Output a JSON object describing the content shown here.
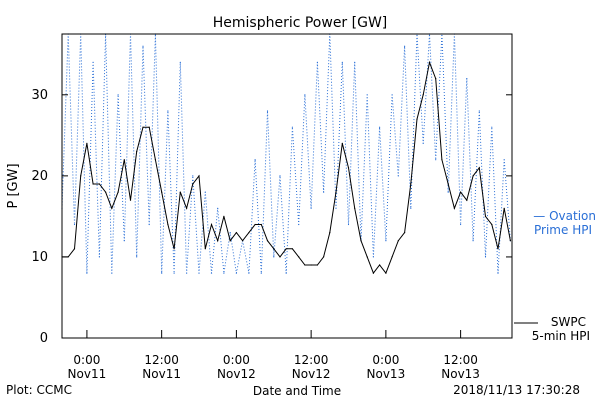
{
  "chart_data": {
    "type": "line",
    "title": "Hemispheric Power [GW]",
    "xlabel": "Date and Time",
    "ylabel": "P [GW]",
    "ylim": [
      0,
      37.5
    ],
    "xlim": [
      "2018-11-10T20:00",
      "2018-11-13T20:15"
    ],
    "y_ticks": [
      0,
      10,
      20,
      30
    ],
    "x_ticks": [
      {
        "t": "2018-11-11T00:00",
        "time": "0:00",
        "date": "Nov11"
      },
      {
        "t": "2018-11-11T12:00",
        "time": "12:00",
        "date": "Nov11"
      },
      {
        "t": "2018-11-12T00:00",
        "time": "0:00",
        "date": "Nov12"
      },
      {
        "t": "2018-11-12T12:00",
        "time": "12:00",
        "date": "Nov12"
      },
      {
        "t": "2018-11-13T00:00",
        "time": "0:00",
        "date": "Nov13"
      },
      {
        "t": "2018-11-13T12:00",
        "time": "12:00",
        "date": "Nov13"
      }
    ],
    "grid": false,
    "legend": "right",
    "series": [
      {
        "name": "SWPC 5-min HPI",
        "legend_lines": [
          "SWPC",
          "5-min HPI"
        ],
        "color": "#000000",
        "style": "solid",
        "points": [
          [
            "2018-11-10T20:00",
            10
          ],
          [
            "2018-11-10T21:00",
            10
          ],
          [
            "2018-11-10T22:00",
            11
          ],
          [
            "2018-11-10T23:00",
            20
          ],
          [
            "2018-11-11T00:00",
            24
          ],
          [
            "2018-11-11T01:00",
            19
          ],
          [
            "2018-11-11T02:00",
            19
          ],
          [
            "2018-11-11T03:00",
            18
          ],
          [
            "2018-11-11T04:00",
            16
          ],
          [
            "2018-11-11T05:00",
            18
          ],
          [
            "2018-11-11T06:00",
            22
          ],
          [
            "2018-11-11T07:00",
            17
          ],
          [
            "2018-11-11T08:00",
            23
          ],
          [
            "2018-11-11T09:00",
            26
          ],
          [
            "2018-11-11T10:00",
            26
          ],
          [
            "2018-11-11T11:00",
            22
          ],
          [
            "2018-11-11T12:00",
            18
          ],
          [
            "2018-11-11T13:00",
            14
          ],
          [
            "2018-11-11T14:00",
            11
          ],
          [
            "2018-11-11T15:00",
            18
          ],
          [
            "2018-11-11T16:00",
            16
          ],
          [
            "2018-11-11T17:00",
            19
          ],
          [
            "2018-11-11T18:00",
            20
          ],
          [
            "2018-11-11T19:00",
            11
          ],
          [
            "2018-11-11T20:00",
            14
          ],
          [
            "2018-11-11T21:00",
            12
          ],
          [
            "2018-11-11T22:00",
            15
          ],
          [
            "2018-11-11T23:00",
            12
          ],
          [
            "2018-11-12T00:00",
            13
          ],
          [
            "2018-11-12T01:00",
            12
          ],
          [
            "2018-11-12T02:00",
            13
          ],
          [
            "2018-11-12T03:00",
            14
          ],
          [
            "2018-11-12T04:00",
            14
          ],
          [
            "2018-11-12T05:00",
            12
          ],
          [
            "2018-11-12T06:00",
            11
          ],
          [
            "2018-11-12T07:00",
            10
          ],
          [
            "2018-11-12T08:00",
            11
          ],
          [
            "2018-11-12T09:00",
            11
          ],
          [
            "2018-11-12T10:00",
            10
          ],
          [
            "2018-11-12T11:00",
            9
          ],
          [
            "2018-11-12T12:00",
            9
          ],
          [
            "2018-11-12T13:00",
            9
          ],
          [
            "2018-11-12T14:00",
            10
          ],
          [
            "2018-11-12T15:00",
            13
          ],
          [
            "2018-11-12T16:00",
            18
          ],
          [
            "2018-11-12T17:00",
            24
          ],
          [
            "2018-11-12T18:00",
            21
          ],
          [
            "2018-11-12T19:00",
            16
          ],
          [
            "2018-11-12T20:00",
            12
          ],
          [
            "2018-11-12T21:00",
            10
          ],
          [
            "2018-11-12T22:00",
            8
          ],
          [
            "2018-11-12T23:00",
            9
          ],
          [
            "2018-11-13T00:00",
            8
          ],
          [
            "2018-11-13T01:00",
            10
          ],
          [
            "2018-11-13T02:00",
            12
          ],
          [
            "2018-11-13T03:00",
            13
          ],
          [
            "2018-11-13T04:00",
            19
          ],
          [
            "2018-11-13T05:00",
            27
          ],
          [
            "2018-11-13T06:00",
            30
          ],
          [
            "2018-11-13T07:00",
            34
          ],
          [
            "2018-11-13T08:00",
            32
          ],
          [
            "2018-11-13T09:00",
            22
          ],
          [
            "2018-11-13T10:00",
            19
          ],
          [
            "2018-11-13T11:00",
            16
          ],
          [
            "2018-11-13T12:00",
            18
          ],
          [
            "2018-11-13T13:00",
            17
          ],
          [
            "2018-11-13T14:00",
            20
          ],
          [
            "2018-11-13T15:00",
            21
          ],
          [
            "2018-11-13T16:00",
            15
          ],
          [
            "2018-11-13T17:00",
            14
          ],
          [
            "2018-11-13T18:00",
            11
          ],
          [
            "2018-11-13T19:00",
            16
          ],
          [
            "2018-11-13T20:00",
            12
          ]
        ]
      },
      {
        "name": "Ovation Prime HPI",
        "legend_lines": [
          "— Ovation",
          "Prime HPI"
        ],
        "color": "#2a6fd6",
        "style": "dotted",
        "points": [
          [
            "2018-11-10T20:00",
            16
          ],
          [
            "2018-11-10T21:00",
            38
          ],
          [
            "2018-11-10T22:00",
            14
          ],
          [
            "2018-11-10T23:00",
            38
          ],
          [
            "2018-11-11T00:00",
            8
          ],
          [
            "2018-11-11T01:00",
            34
          ],
          [
            "2018-11-11T02:00",
            10
          ],
          [
            "2018-11-11T03:00",
            38
          ],
          [
            "2018-11-11T04:00",
            8
          ],
          [
            "2018-11-11T05:00",
            30
          ],
          [
            "2018-11-11T06:00",
            12
          ],
          [
            "2018-11-11T07:00",
            38
          ],
          [
            "2018-11-11T08:00",
            10
          ],
          [
            "2018-11-11T09:00",
            36
          ],
          [
            "2018-11-11T10:00",
            14
          ],
          [
            "2018-11-11T11:00",
            38
          ],
          [
            "2018-11-11T12:00",
            8
          ],
          [
            "2018-11-11T13:00",
            28
          ],
          [
            "2018-11-11T14:00",
            8
          ],
          [
            "2018-11-11T15:00",
            34
          ],
          [
            "2018-11-11T16:00",
            8
          ],
          [
            "2018-11-11T17:00",
            20
          ],
          [
            "2018-11-11T18:00",
            8
          ],
          [
            "2018-11-11T19:00",
            18
          ],
          [
            "2018-11-11T20:00",
            8
          ],
          [
            "2018-11-11T21:00",
            16
          ],
          [
            "2018-11-11T22:00",
            8
          ],
          [
            "2018-11-11T23:00",
            13
          ],
          [
            "2018-11-12T00:00",
            8
          ],
          [
            "2018-11-12T01:00",
            12
          ],
          [
            "2018-11-12T02:00",
            8
          ],
          [
            "2018-11-12T03:00",
            22
          ],
          [
            "2018-11-12T04:00",
            8
          ],
          [
            "2018-11-12T05:00",
            28
          ],
          [
            "2018-11-12T06:00",
            10
          ],
          [
            "2018-11-12T07:00",
            20
          ],
          [
            "2018-11-12T08:00",
            8
          ],
          [
            "2018-11-12T09:00",
            26
          ],
          [
            "2018-11-12T10:00",
            14
          ],
          [
            "2018-11-12T11:00",
            30
          ],
          [
            "2018-11-12T12:00",
            16
          ],
          [
            "2018-11-12T13:00",
            34
          ],
          [
            "2018-11-12T14:00",
            18
          ],
          [
            "2018-11-12T15:00",
            38
          ],
          [
            "2018-11-12T16:00",
            16
          ],
          [
            "2018-11-12T17:00",
            34
          ],
          [
            "2018-11-12T18:00",
            14
          ],
          [
            "2018-11-12T19:00",
            34
          ],
          [
            "2018-11-12T20:00",
            12
          ],
          [
            "2018-11-12T21:00",
            30
          ],
          [
            "2018-11-12T22:00",
            10
          ],
          [
            "2018-11-12T23:00",
            26
          ],
          [
            "2018-11-13T00:00",
            12
          ],
          [
            "2018-11-13T01:00",
            30
          ],
          [
            "2018-11-13T02:00",
            20
          ],
          [
            "2018-11-13T03:00",
            36
          ],
          [
            "2018-11-13T04:00",
            16
          ],
          [
            "2018-11-13T05:00",
            38
          ],
          [
            "2018-11-13T06:00",
            24
          ],
          [
            "2018-11-13T07:00",
            38
          ],
          [
            "2018-11-13T08:00",
            22
          ],
          [
            "2018-11-13T09:00",
            38
          ],
          [
            "2018-11-13T10:00",
            18
          ],
          [
            "2018-11-13T11:00",
            38
          ],
          [
            "2018-11-13T12:00",
            14
          ],
          [
            "2018-11-13T13:00",
            32
          ],
          [
            "2018-11-13T14:00",
            12
          ],
          [
            "2018-11-13T15:00",
            28
          ],
          [
            "2018-11-13T16:00",
            10
          ],
          [
            "2018-11-13T17:00",
            26
          ],
          [
            "2018-11-13T18:00",
            8
          ],
          [
            "2018-11-13T19:00",
            22
          ],
          [
            "2018-11-13T20:00",
            12
          ]
        ]
      }
    ]
  },
  "footer": {
    "plot_credit": "Plot: CCMC",
    "timestamp": "2018/11/13 17:30:28"
  }
}
